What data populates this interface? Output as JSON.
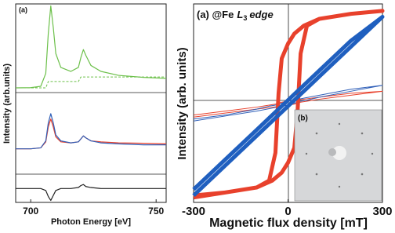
{
  "chart_data": [
    {
      "type": "line",
      "label": "(a)",
      "xlabel": "Photon Energy [eV]",
      "ylabel": "Intensity (arb.units)",
      "x": [
        694,
        700,
        704,
        706,
        707,
        708,
        709,
        710,
        712,
        716,
        719,
        720,
        721,
        722,
        724,
        728,
        735,
        745,
        754
      ],
      "xlim": [
        694,
        754
      ],
      "xticks": [
        700,
        750
      ],
      "ylim": [
        0,
        100
      ],
      "series": [
        {
          "color": "#6cc04a",
          "linewidth": 1.2,
          "values": [
            57.7,
            57.8,
            58.5,
            65,
            85,
            99,
            88,
            75,
            68,
            66,
            68,
            73,
            77,
            74,
            69,
            66,
            64,
            63,
            62.5
          ]
        },
        {
          "color": "#6cc04a",
          "linewidth": 1,
          "dashed": true,
          "values": [
            57.7,
            57.7,
            57.7,
            57.7,
            60.9,
            60.9,
            60.9,
            60.9,
            60.9,
            60.9,
            60.9,
            63.2,
            63.2,
            63.2,
            63.2,
            63.2,
            63.2,
            63.2,
            63.2
          ]
        },
        {
          "color": "#e8412c",
          "linewidth": 1.2,
          "values": [
            27,
            27,
            27.5,
            30.5,
            38,
            42,
            38,
            33,
            30.5,
            30,
            30.5,
            32,
            33.5,
            32.5,
            31,
            30.5,
            30,
            29.8,
            29.5
          ]
        },
        {
          "color": "#2f5fb8",
          "linewidth": 1.2,
          "values": [
            27,
            27,
            27.5,
            31,
            40,
            44.7,
            40,
            34,
            31,
            30,
            30.5,
            32,
            33.5,
            32.5,
            31,
            30,
            29.5,
            29,
            29
          ]
        },
        {
          "color": "#222222",
          "linewidth": 1.2,
          "values": [
            7,
            7,
            7,
            6,
            3,
            1,
            3.5,
            6,
            7,
            7,
            7.5,
            8.5,
            9,
            8,
            7.5,
            7,
            7,
            7,
            7
          ]
        }
      ]
    },
    {
      "type": "line",
      "label": "(a) @Fe",
      "element": "L",
      "subscript": "3",
      "edge": "edge",
      "inset_label": "(b)",
      "xlabel": "Magnetic flux density [mT]",
      "ylabel": "Intensity (arb. units)",
      "x": [
        -300,
        -200,
        -100,
        -50,
        -20,
        0,
        20,
        30,
        40,
        60,
        100,
        200,
        300,
        200,
        100,
        50,
        20,
        0,
        -20,
        -30,
        -40,
        -60,
        -100,
        -200,
        -300
      ],
      "xlim": [
        -300,
        300
      ],
      "xticks": [
        -300,
        0,
        300
      ],
      "ylim": [
        -1,
        1
      ],
      "series": [
        {
          "color": "#e8412c",
          "linewidth": 1,
          "values": [
            -0.14,
            -0.1,
            -0.06,
            -0.04,
            -0.03,
            -0.02,
            -0.01,
            0,
            0.01,
            0.02,
            0.04,
            0.08,
            0.12,
            0.1,
            0.06,
            0.04,
            0.03,
            0.02,
            0.01,
            0,
            -0.01,
            -0.02,
            -0.04,
            -0.08,
            -0.12
          ]
        },
        {
          "color": "#2f5fb8",
          "linewidth": 1,
          "values": [
            -0.18,
            -0.13,
            -0.08,
            -0.05,
            -0.03,
            -0.02,
            0,
            0.01,
            0.02,
            0.03,
            0.06,
            0.12,
            0.18,
            0.14,
            0.08,
            0.05,
            0.03,
            0.02,
            0,
            -0.01,
            -0.02,
            -0.03,
            -0.06,
            -0.12,
            -0.16
          ]
        },
        {
          "color": "#e8412c",
          "linewidth": 5,
          "values": [
            -0.95,
            -0.9,
            -0.85,
            -0.78,
            -0.7,
            -0.6,
            -0.45,
            -0.1,
            0.5,
            0.78,
            0.85,
            0.9,
            0.93,
            0.9,
            0.85,
            0.78,
            0.7,
            0.6,
            0.45,
            0.1,
            -0.5,
            -0.78,
            -0.85,
            -0.9,
            -0.93
          ]
        },
        {
          "color": "#1f5fbf",
          "linewidth": 5,
          "values": [
            -0.93,
            -0.63,
            -0.33,
            -0.18,
            -0.09,
            -0.03,
            0.03,
            0.06,
            0.09,
            0.15,
            0.27,
            0.57,
            0.87,
            0.63,
            0.33,
            0.18,
            0.09,
            0.03,
            -0.03,
            -0.06,
            -0.09,
            -0.15,
            -0.27,
            -0.57,
            -0.87
          ]
        }
      ]
    }
  ]
}
